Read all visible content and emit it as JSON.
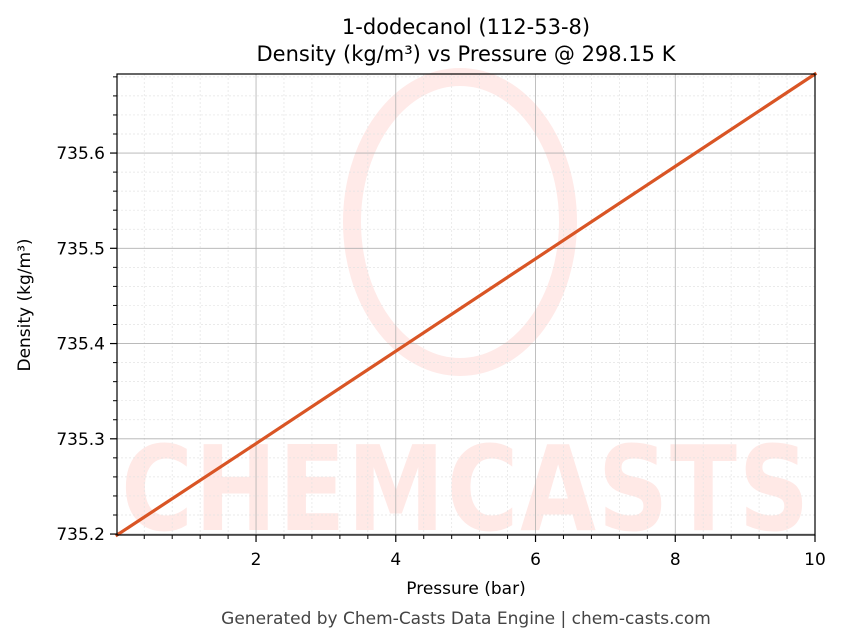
{
  "chart_data": {
    "type": "line",
    "title_line1": "1-dodecanol (112-53-8)",
    "title_line2": "Density (kg/m³) vs Pressure @ 298.15 K",
    "xlabel": "Pressure (bar)",
    "ylabel": "Density (kg/m³)",
    "xlim": [
      0.01,
      10
    ],
    "ylim": [
      735.199,
      735.683
    ],
    "x_ticks": [
      2,
      4,
      6,
      8,
      10
    ],
    "y_ticks": [
      735.2,
      735.3,
      735.4,
      735.5,
      735.6
    ],
    "x_tick_labels": [
      "2",
      "4",
      "6",
      "8",
      "10"
    ],
    "y_tick_labels": [
      "735.2",
      "735.3",
      "735.4",
      "735.5",
      "735.6"
    ],
    "grid": true,
    "series": [
      {
        "color": "#d95525",
        "x": [
          0.01,
          2,
          4,
          6,
          8,
          10
        ],
        "y": [
          735.199,
          735.295,
          735.392,
          735.489,
          735.586,
          735.683
        ]
      }
    ]
  },
  "watermark": {
    "text": "CHEMCASTS",
    "color": "#ff5a4a"
  },
  "footer": "Generated by Chem-Casts Data Engine | chem-casts.com"
}
